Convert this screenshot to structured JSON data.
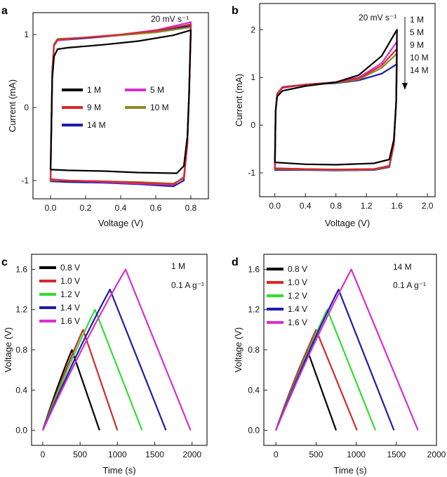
{
  "chart_data": [
    {
      "panel": "a",
      "type": "line",
      "xlabel": "Voltage (V)",
      "ylabel": "Current (mA)",
      "xlim": [
        -0.1,
        0.9
      ],
      "ylim": [
        -1.25,
        1.3
      ],
      "xticks": [
        "0.0",
        "0.2",
        "0.4",
        "0.6",
        "0.8"
      ],
      "xtick_values": [
        0,
        0.2,
        0.4,
        0.6,
        0.8
      ],
      "yticks": [
        "-1",
        "0",
        "1"
      ],
      "ytick_values": [
        -1,
        0,
        1
      ],
      "annotation": "20 mV s⁻¹",
      "legend": [
        "1 M",
        "5 M",
        "9 M",
        "10 M",
        "14 M"
      ],
      "series": [
        {
          "name": "1 M",
          "color": "#000000",
          "upper": [
            [
              0.0,
              -0.85
            ],
            [
              0.01,
              0.4
            ],
            [
              0.02,
              0.7
            ],
            [
              0.04,
              0.8
            ],
            [
              0.1,
              0.82
            ],
            [
              0.3,
              0.86
            ],
            [
              0.5,
              0.91
            ],
            [
              0.7,
              0.99
            ],
            [
              0.8,
              1.06
            ]
          ],
          "lower": [
            [
              0.8,
              1.06
            ],
            [
              0.79,
              0.2
            ],
            [
              0.78,
              -0.4
            ],
            [
              0.76,
              -0.8
            ],
            [
              0.72,
              -0.9
            ],
            [
              0.5,
              -0.89
            ],
            [
              0.3,
              -0.87
            ],
            [
              0.1,
              -0.86
            ],
            [
              0.0,
              -0.85
            ]
          ]
        },
        {
          "name": "5 M",
          "color": "#d62fd0",
          "upper": [
            [
              0.0,
              -0.98
            ],
            [
              0.01,
              0.5
            ],
            [
              0.02,
              0.85
            ],
            [
              0.04,
              0.92
            ],
            [
              0.2,
              0.96
            ],
            [
              0.4,
              1.0
            ],
            [
              0.6,
              1.06
            ],
            [
              0.8,
              1.17
            ]
          ],
          "lower": [
            [
              0.8,
              1.17
            ],
            [
              0.79,
              0.2
            ],
            [
              0.78,
              -0.5
            ],
            [
              0.76,
              -0.95
            ],
            [
              0.7,
              -1.06
            ],
            [
              0.5,
              -1.04
            ],
            [
              0.3,
              -1.02
            ],
            [
              0.1,
              -1.0
            ],
            [
              0.0,
              -0.98
            ]
          ]
        },
        {
          "name": "9 M",
          "color": "#d42a2a",
          "upper": [
            [
              0.0,
              -0.99
            ],
            [
              0.01,
              0.5
            ],
            [
              0.02,
              0.86
            ],
            [
              0.04,
              0.93
            ],
            [
              0.2,
              0.96
            ],
            [
              0.4,
              1.0
            ],
            [
              0.6,
              1.05
            ],
            [
              0.8,
              1.14
            ]
          ],
          "lower": [
            [
              0.8,
              1.14
            ],
            [
              0.79,
              0.2
            ],
            [
              0.78,
              -0.5
            ],
            [
              0.76,
              -0.96
            ],
            [
              0.7,
              -1.05
            ],
            [
              0.5,
              -1.03
            ],
            [
              0.3,
              -1.01
            ],
            [
              0.1,
              -1.0
            ],
            [
              0.0,
              -0.99
            ]
          ]
        },
        {
          "name": "10 M",
          "color": "#8c8a22",
          "upper": [
            [
              0.0,
              -1.0
            ],
            [
              0.01,
              0.5
            ],
            [
              0.02,
              0.87
            ],
            [
              0.04,
              0.94
            ],
            [
              0.2,
              0.96
            ],
            [
              0.4,
              0.99
            ],
            [
              0.6,
              1.03
            ],
            [
              0.8,
              1.1
            ]
          ],
          "lower": [
            [
              0.8,
              1.1
            ],
            [
              0.79,
              0.2
            ],
            [
              0.78,
              -0.5
            ],
            [
              0.76,
              -0.97
            ],
            [
              0.7,
              -1.04
            ],
            [
              0.5,
              -1.02
            ],
            [
              0.3,
              -1.01
            ],
            [
              0.1,
              -1.0
            ],
            [
              0.0,
              -1.0
            ]
          ]
        },
        {
          "name": "14 M",
          "color": "#1c1ca8",
          "upper": [
            [
              0.0,
              -1.01
            ],
            [
              0.01,
              0.5
            ],
            [
              0.02,
              0.85
            ],
            [
              0.04,
              0.92
            ],
            [
              0.2,
              0.95
            ],
            [
              0.4,
              0.99
            ],
            [
              0.6,
              1.04
            ],
            [
              0.8,
              1.12
            ]
          ],
          "lower": [
            [
              0.8,
              1.12
            ],
            [
              0.79,
              0.2
            ],
            [
              0.78,
              -0.5
            ],
            [
              0.76,
              -1.0
            ],
            [
              0.7,
              -1.08
            ],
            [
              0.5,
              -1.05
            ],
            [
              0.3,
              -1.03
            ],
            [
              0.1,
              -1.02
            ],
            [
              0.0,
              -1.01
            ]
          ]
        }
      ]
    },
    {
      "panel": "b",
      "type": "line",
      "xlabel": "Voltage (V)",
      "ylabel": "Current (mA)",
      "xlim": [
        -0.2,
        2.1
      ],
      "ylim": [
        -1.5,
        2.55
      ],
      "xticks": [
        "0.0",
        "0.4",
        "0.8",
        "1.2",
        "1.6",
        "2.0"
      ],
      "xtick_values": [
        0,
        0.4,
        0.8,
        1.2,
        1.6,
        2.0
      ],
      "yticks": [
        "-1",
        "0",
        "1",
        "2"
      ],
      "ytick_values": [
        -1,
        0,
        1,
        2
      ],
      "annotation": "20 mV s⁻¹",
      "legend": [
        "1 M",
        "5 M",
        "9 M",
        "10 M",
        "14 M"
      ],
      "series": [
        {
          "name": "1 M",
          "color": "#000000",
          "upper": [
            [
              0.0,
              -0.78
            ],
            [
              0.01,
              0.3
            ],
            [
              0.03,
              0.6
            ],
            [
              0.1,
              0.72
            ],
            [
              0.4,
              0.82
            ],
            [
              0.8,
              0.9
            ],
            [
              1.1,
              1.05
            ],
            [
              1.4,
              1.45
            ],
            [
              1.6,
              2.0
            ]
          ],
          "lower": [
            [
              1.6,
              2.0
            ],
            [
              1.59,
              0.5
            ],
            [
              1.56,
              -0.3
            ],
            [
              1.5,
              -0.72
            ],
            [
              1.3,
              -0.8
            ],
            [
              0.8,
              -0.83
            ],
            [
              0.4,
              -0.82
            ],
            [
              0.0,
              -0.78
            ]
          ]
        },
        {
          "name": "5 M",
          "color": "#d62fd0",
          "upper": [
            [
              0.0,
              -0.9
            ],
            [
              0.01,
              0.3
            ],
            [
              0.03,
              0.65
            ],
            [
              0.1,
              0.78
            ],
            [
              0.4,
              0.85
            ],
            [
              0.8,
              0.9
            ],
            [
              1.1,
              1.0
            ],
            [
              1.4,
              1.3
            ],
            [
              1.6,
              1.75
            ]
          ],
          "lower": [
            [
              1.6,
              1.75
            ],
            [
              1.59,
              0.5
            ],
            [
              1.56,
              -0.4
            ],
            [
              1.5,
              -0.85
            ],
            [
              1.3,
              -0.92
            ],
            [
              0.8,
              -0.93
            ],
            [
              0.4,
              -0.92
            ],
            [
              0.0,
              -0.9
            ]
          ]
        },
        {
          "name": "9 M",
          "color": "#d42a2a",
          "upper": [
            [
              0.0,
              -0.91
            ],
            [
              0.01,
              0.3
            ],
            [
              0.03,
              0.66
            ],
            [
              0.1,
              0.79
            ],
            [
              0.4,
              0.85
            ],
            [
              0.8,
              0.9
            ],
            [
              1.1,
              0.98
            ],
            [
              1.4,
              1.25
            ],
            [
              1.6,
              1.6
            ]
          ],
          "lower": [
            [
              1.6,
              1.6
            ],
            [
              1.59,
              0.5
            ],
            [
              1.56,
              -0.4
            ],
            [
              1.5,
              -0.86
            ],
            [
              1.3,
              -0.92
            ],
            [
              0.8,
              -0.93
            ],
            [
              0.4,
              -0.92
            ],
            [
              0.0,
              -0.91
            ]
          ]
        },
        {
          "name": "10 M",
          "color": "#8c8a22",
          "upper": [
            [
              0.0,
              -0.92
            ],
            [
              0.01,
              0.3
            ],
            [
              0.03,
              0.66
            ],
            [
              0.1,
              0.79
            ],
            [
              0.4,
              0.85
            ],
            [
              0.8,
              0.89
            ],
            [
              1.1,
              0.96
            ],
            [
              1.4,
              1.2
            ],
            [
              1.6,
              1.5
            ]
          ],
          "lower": [
            [
              1.6,
              1.5
            ],
            [
              1.59,
              0.5
            ],
            [
              1.56,
              -0.4
            ],
            [
              1.5,
              -0.87
            ],
            [
              1.3,
              -0.93
            ],
            [
              0.8,
              -0.94
            ],
            [
              0.4,
              -0.93
            ],
            [
              0.0,
              -0.92
            ]
          ]
        },
        {
          "name": "14 M",
          "color": "#1c1ca8",
          "upper": [
            [
              0.0,
              -0.94
            ],
            [
              0.01,
              0.3
            ],
            [
              0.03,
              0.66
            ],
            [
              0.1,
              0.8
            ],
            [
              0.4,
              0.85
            ],
            [
              0.8,
              0.88
            ],
            [
              1.1,
              0.94
            ],
            [
              1.4,
              1.08
            ],
            [
              1.6,
              1.28
            ]
          ],
          "lower": [
            [
              1.6,
              1.28
            ],
            [
              1.59,
              0.5
            ],
            [
              1.56,
              -0.4
            ],
            [
              1.5,
              -0.88
            ],
            [
              1.3,
              -0.94
            ],
            [
              0.8,
              -0.95
            ],
            [
              0.4,
              -0.94
            ],
            [
              0.0,
              -0.94
            ]
          ]
        }
      ]
    },
    {
      "panel": "c",
      "type": "line",
      "xlabel": "Time (s)",
      "ylabel": "Voltage (V)",
      "xlim": [
        -150,
        2200
      ],
      "ylim": [
        -0.15,
        1.75
      ],
      "xticks": [
        "0",
        "500",
        "1000",
        "1500",
        "2000"
      ],
      "xtick_values": [
        0,
        500,
        1000,
        1500,
        2000
      ],
      "yticks": [
        "0.0",
        "0.4",
        "0.8",
        "1.2",
        "1.6"
      ],
      "ytick_values": [
        0,
        0.4,
        0.8,
        1.2,
        1.6
      ],
      "annotation_lines": [
        "1 M",
        "0.1 A g⁻¹"
      ],
      "legend": [
        "0.8 V",
        "1.0 V",
        "1.2 V",
        "1.4 V",
        "1.6 V"
      ],
      "series": [
        {
          "name": "0.8 V",
          "color": "#000000",
          "vmax": 0.8,
          "t_peak": 390,
          "t_end": 760
        },
        {
          "name": "1.0 V",
          "color": "#d42a2a",
          "vmax": 1.0,
          "t_peak": 540,
          "t_end": 1000
        },
        {
          "name": "1.2 V",
          "color": "#33dd33",
          "vmax": 1.2,
          "t_peak": 700,
          "t_end": 1330
        },
        {
          "name": "1.4 V",
          "color": "#1c1ca8",
          "vmax": 1.4,
          "t_peak": 900,
          "t_end": 1650
        },
        {
          "name": "1.6 V",
          "color": "#d62fd0",
          "vmax": 1.6,
          "t_peak": 1110,
          "t_end": 1980
        }
      ]
    },
    {
      "panel": "d",
      "type": "line",
      "xlabel": "Time (s)",
      "ylabel": "Voltage (V)",
      "xlim": [
        -150,
        2000
      ],
      "ylim": [
        -0.15,
        1.75
      ],
      "xticks": [
        "0",
        "500",
        "1000",
        "1500",
        "2000"
      ],
      "xtick_values": [
        0,
        500,
        1000,
        1500,
        2000
      ],
      "yticks": [
        "0.0",
        "0.4",
        "0.8",
        "1.2",
        "1.6"
      ],
      "ytick_values": [
        0,
        0.4,
        0.8,
        1.2,
        1.6
      ],
      "annotation_lines": [
        "14 M",
        "0.1 A g⁻¹"
      ],
      "legend": [
        "0.8 V",
        "1.0 V",
        "1.2 V",
        "1.4 V",
        "1.6 V"
      ],
      "series": [
        {
          "name": "0.8 V",
          "color": "#000000",
          "vmax": 0.8,
          "t_peak": 390,
          "t_end": 750
        },
        {
          "name": "1.0 V",
          "color": "#d42a2a",
          "vmax": 1.0,
          "t_peak": 500,
          "t_end": 1010
        },
        {
          "name": "1.2 V",
          "color": "#33dd33",
          "vmax": 1.2,
          "t_peak": 640,
          "t_end": 1240
        },
        {
          "name": "1.4 V",
          "color": "#1c1ca8",
          "vmax": 1.4,
          "t_peak": 780,
          "t_end": 1470
        },
        {
          "name": "1.6 V",
          "color": "#d62fd0",
          "vmax": 1.6,
          "t_peak": 940,
          "t_end": 1770
        }
      ]
    }
  ],
  "panel_labels": [
    "a",
    "b",
    "c",
    "d"
  ]
}
